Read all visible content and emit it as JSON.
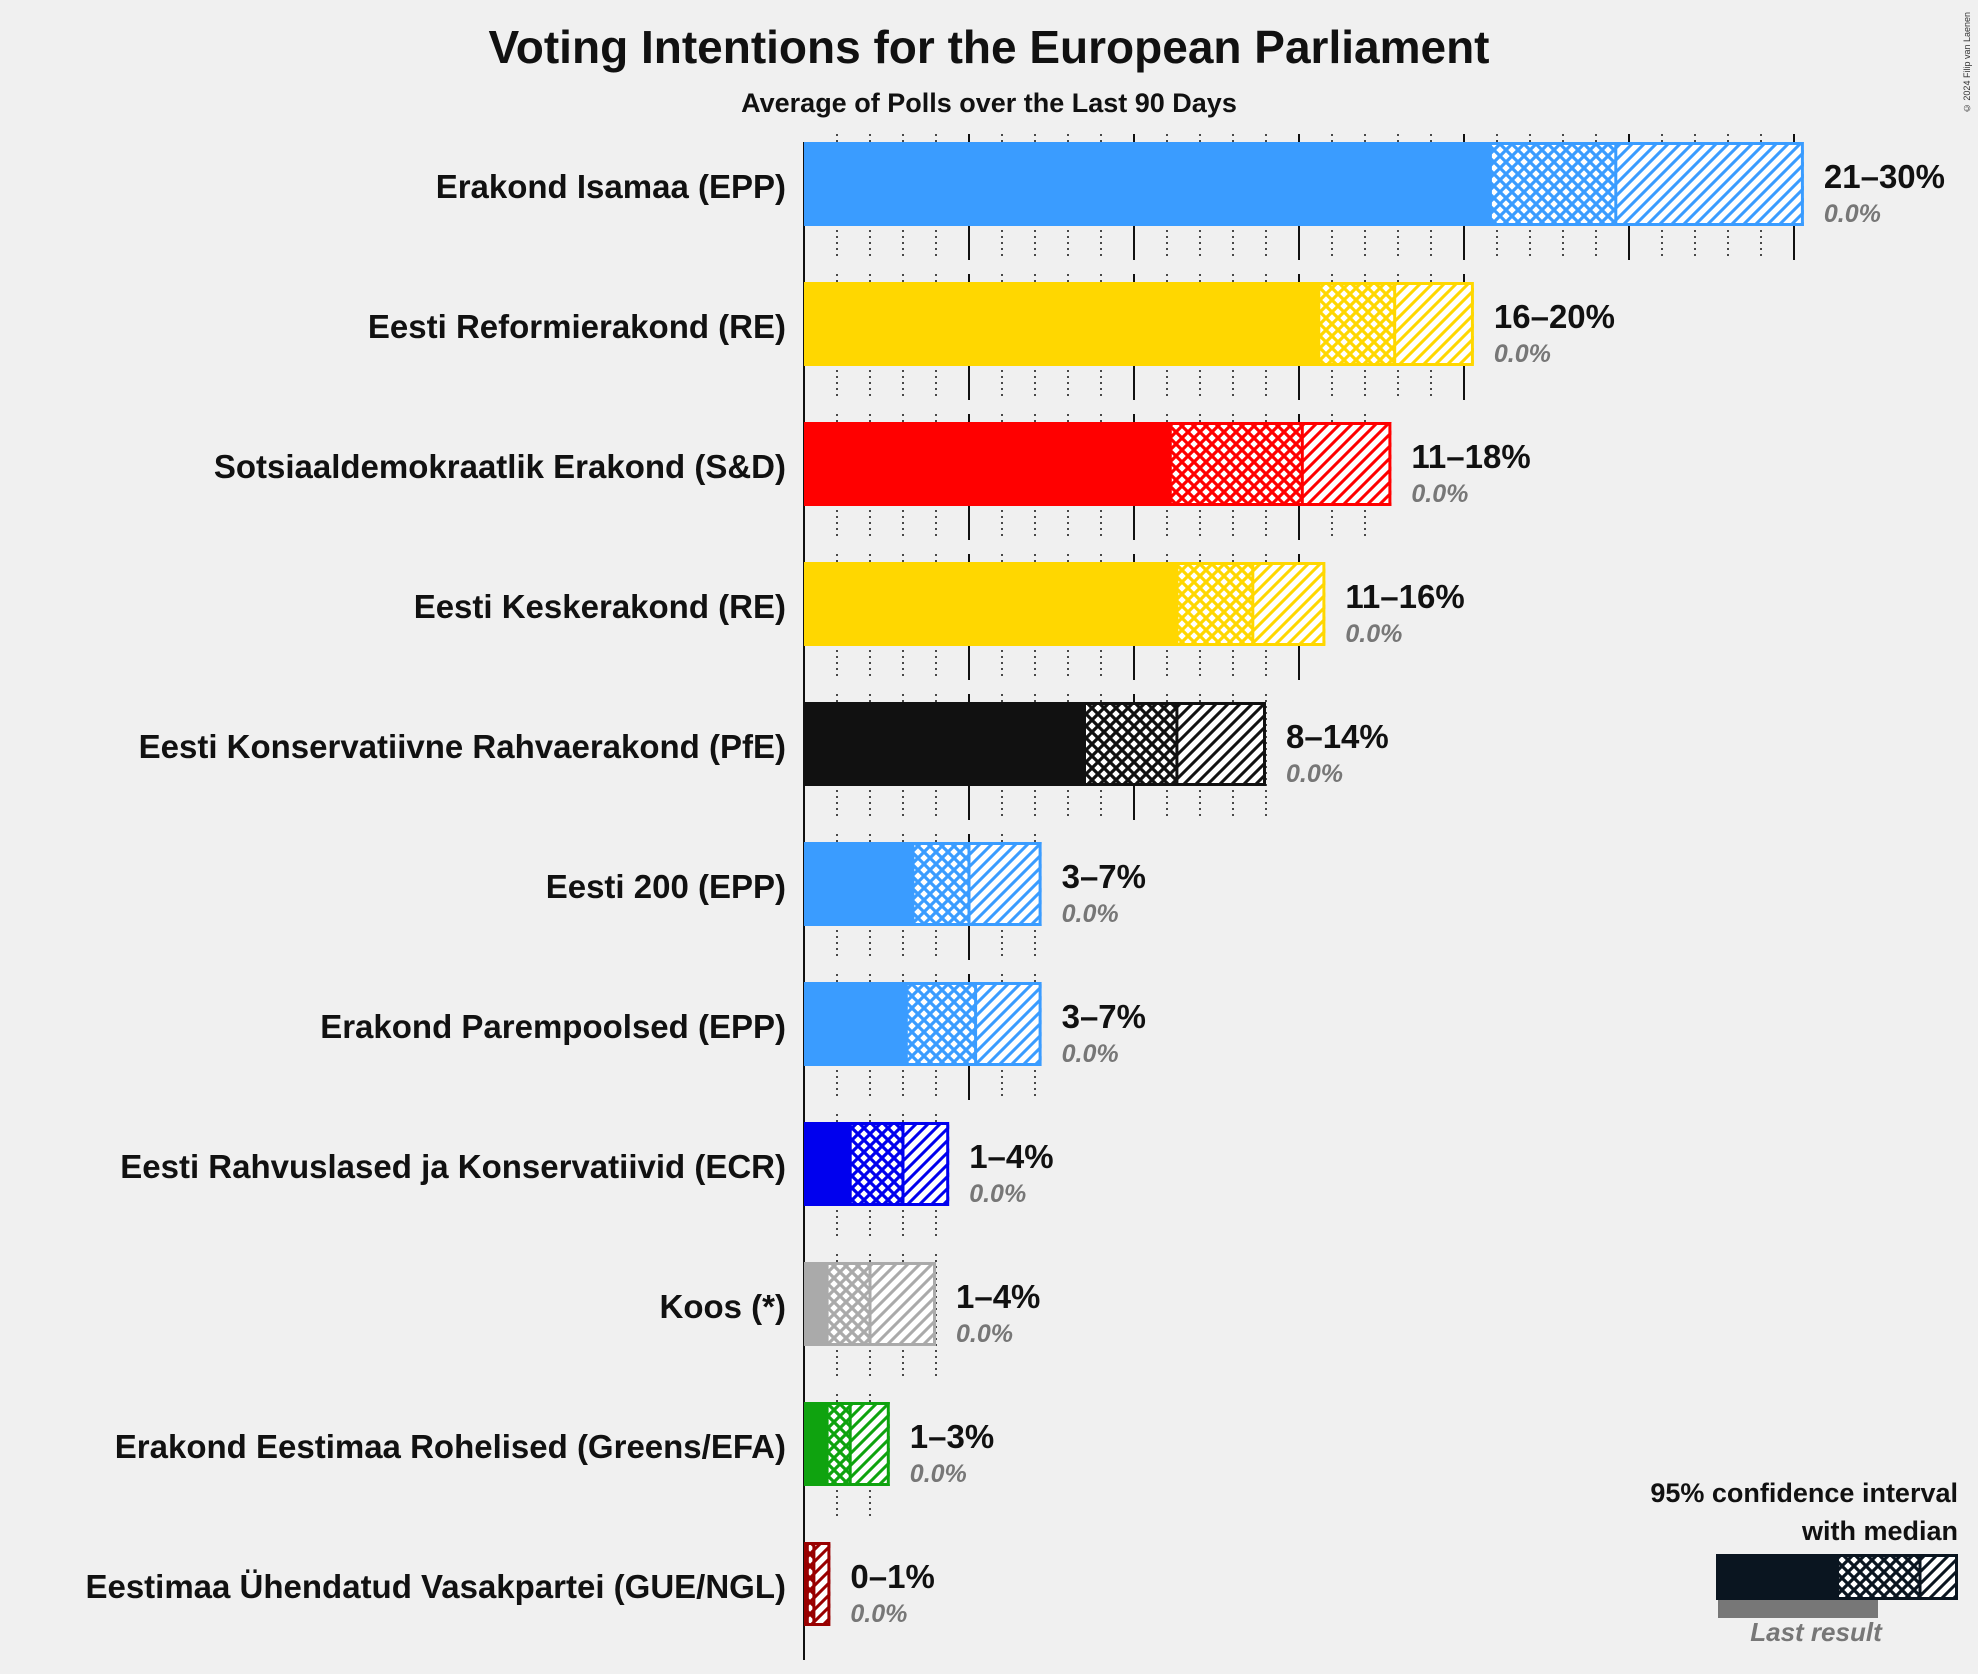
{
  "title": "Voting Intentions for the European Parliament",
  "subtitle": "Average of Polls over the Last 90 Days",
  "copyright": "© 2024 Filip van Laenen",
  "legend": {
    "title_line1": "95% confidence interval",
    "title_line2": "with median",
    "last_result": "Last result",
    "color": "#0a1520"
  },
  "chart_data": {
    "type": "bar",
    "orientation": "horizontal",
    "xlim": [
      0,
      30
    ],
    "series": [
      {
        "party": "Erakond Isamaa (EPP)",
        "color": "#3a9cff",
        "low": 20.8,
        "median": 24.6,
        "high": 30.3,
        "range_label": "21–30%",
        "last_result": "0.0%"
      },
      {
        "party": "Eesti Reformierakond (RE)",
        "color": "#ffd700",
        "low": 15.6,
        "median": 17.9,
        "high": 20.3,
        "range_label": "16–20%",
        "last_result": "0.0%"
      },
      {
        "party": "Sotsiaaldemokraatlik Erakond (S&D)",
        "color": "#ff0000",
        "low": 11.1,
        "median": 15.1,
        "high": 17.8,
        "range_label": "11–18%",
        "last_result": "0.0%"
      },
      {
        "party": "Eesti Keskerakond (RE)",
        "color": "#ffd700",
        "low": 11.3,
        "median": 13.6,
        "high": 15.8,
        "range_label": "11–16%",
        "last_result": "0.0%"
      },
      {
        "party": "Eesti Konservatiivne Rahvaerakond (PfE)",
        "color": "#111111",
        "low": 8.5,
        "median": 11.3,
        "high": 14.0,
        "range_label": "8–14%",
        "last_result": "0.0%"
      },
      {
        "party": "Eesti 200 (EPP)",
        "color": "#3a9cff",
        "low": 3.3,
        "median": 5.0,
        "high": 7.2,
        "range_label": "3–7%",
        "last_result": "0.0%"
      },
      {
        "party": "Erakond Parempoolsed (EPP)",
        "color": "#3a9cff",
        "low": 3.1,
        "median": 5.2,
        "high": 7.2,
        "range_label": "3–7%",
        "last_result": "0.0%"
      },
      {
        "party": "Eesti Rahvuslased ja Konservatiivid (ECR)",
        "color": "#0000ee",
        "low": 1.4,
        "median": 3.0,
        "high": 4.4,
        "range_label": "1–4%",
        "last_result": "0.0%"
      },
      {
        "party": "Koos (*)",
        "color": "#aaaaaa",
        "low": 0.7,
        "median": 2.0,
        "high": 4.0,
        "range_label": "1–4%",
        "last_result": "0.0%"
      },
      {
        "party": "Erakond Eestimaa Rohelised (Greens/EFA)",
        "color": "#0fa30f",
        "low": 0.7,
        "median": 1.4,
        "high": 2.6,
        "range_label": "1–3%",
        "last_result": "0.0%"
      },
      {
        "party": "Eestimaa Ühendatud Vasakpartei (GUE/NGL)",
        "color": "#990000",
        "low": 0.1,
        "median": 0.3,
        "high": 0.8,
        "range_label": "0–1%",
        "last_result": "0.0%"
      }
    ]
  }
}
